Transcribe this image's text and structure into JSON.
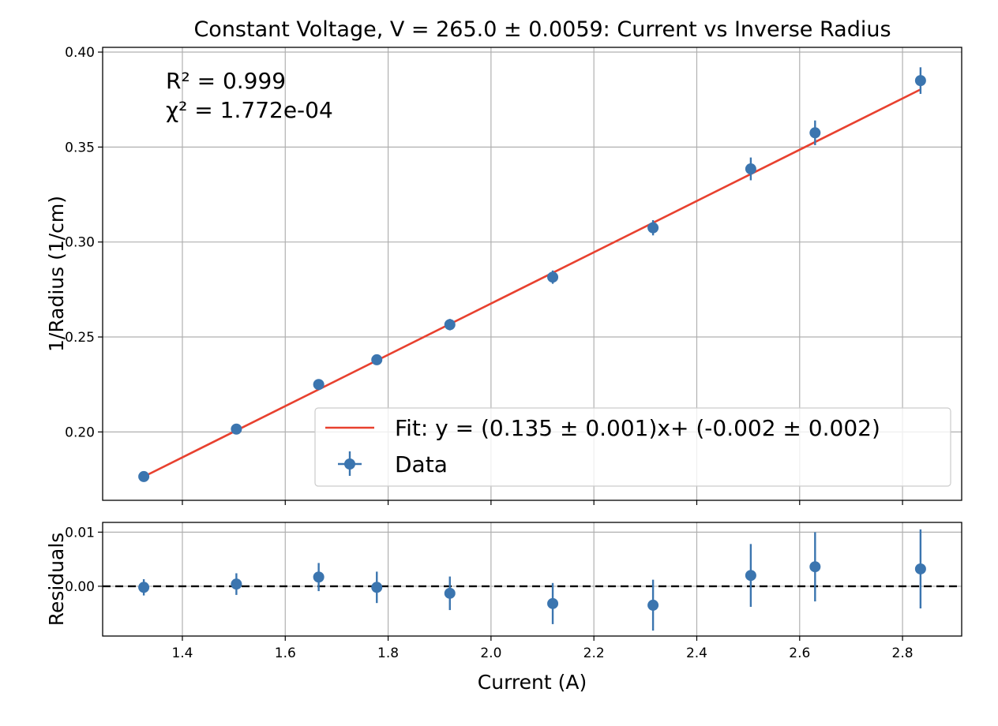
{
  "chart_data": [
    {
      "type": "scatter",
      "title": "Constant Voltage, V = 265.0 ± 0.0059: Current vs Inverse Radius",
      "xlabel": "",
      "ylabel": "1/Radius (1/cm)",
      "xlim": [
        1.245,
        2.915
      ],
      "ylim": [
        0.164,
        0.4025
      ],
      "xticks": [
        1.4,
        1.6,
        1.8,
        2.0,
        2.2,
        2.4,
        2.6,
        2.8
      ],
      "yticks": [
        0.2,
        0.25,
        0.3,
        0.35,
        0.4
      ],
      "ytick_labels": [
        "0.20",
        "0.25",
        "0.30",
        "0.35",
        "0.40"
      ],
      "grid": true,
      "legend_position": "lower-right",
      "annotations": [
        "R² = 0.999",
        "χ² = 1.772e-04"
      ],
      "series": [
        {
          "name": "Fit: y = (0.135 ± 0.001)x+ (-0.002 ± 0.002)",
          "type": "line",
          "color": "#e8412f",
          "slope": 0.135,
          "intercept": -0.0024,
          "x": [
            1.325,
            2.835
          ]
        },
        {
          "name": "Data",
          "type": "errorbar",
          "color": "#3b75af",
          "x": [
            1.325,
            1.505,
            1.665,
            1.778,
            1.92,
            2.12,
            2.315,
            2.505,
            2.63,
            2.835
          ],
          "y": [
            0.1765,
            0.2015,
            0.225,
            0.238,
            0.2565,
            0.2815,
            0.3075,
            0.3385,
            0.3575,
            0.385
          ],
          "yerr": [
            0.0015,
            0.002,
            0.002,
            0.0025,
            0.003,
            0.0035,
            0.004,
            0.006,
            0.0065,
            0.007
          ]
        }
      ]
    },
    {
      "type": "scatter",
      "title": "",
      "xlabel": "Current (A)",
      "ylabel": "Residuals",
      "xlim": [
        1.245,
        2.915
      ],
      "ylim": [
        -0.0092,
        0.0118
      ],
      "xticks": [
        1.4,
        1.6,
        1.8,
        2.0,
        2.2,
        2.4,
        2.6,
        2.8
      ],
      "xtick_labels": [
        "1.4",
        "1.6",
        "1.8",
        "2.0",
        "2.2",
        "2.4",
        "2.6",
        "2.8"
      ],
      "yticks": [
        0.0,
        0.01
      ],
      "ytick_labels": [
        "0.00",
        "0.01"
      ],
      "grid": true,
      "reference_line": {
        "y": 0.0,
        "style": "dashed",
        "color": "#000000"
      },
      "series": [
        {
          "name": "",
          "type": "errorbar",
          "color": "#3b75af",
          "x": [
            1.325,
            1.505,
            1.665,
            1.778,
            1.92,
            2.12,
            2.315,
            2.505,
            2.63,
            2.835
          ],
          "y": [
            -0.0002,
            0.0004,
            0.0017,
            -0.0002,
            -0.0013,
            -0.0032,
            -0.0035,
            0.002,
            0.0036,
            0.0032
          ],
          "yerr": [
            0.0015,
            0.002,
            0.0026,
            0.0029,
            0.0031,
            0.0038,
            0.0047,
            0.0058,
            0.0064,
            0.0073
          ]
        }
      ]
    }
  ]
}
